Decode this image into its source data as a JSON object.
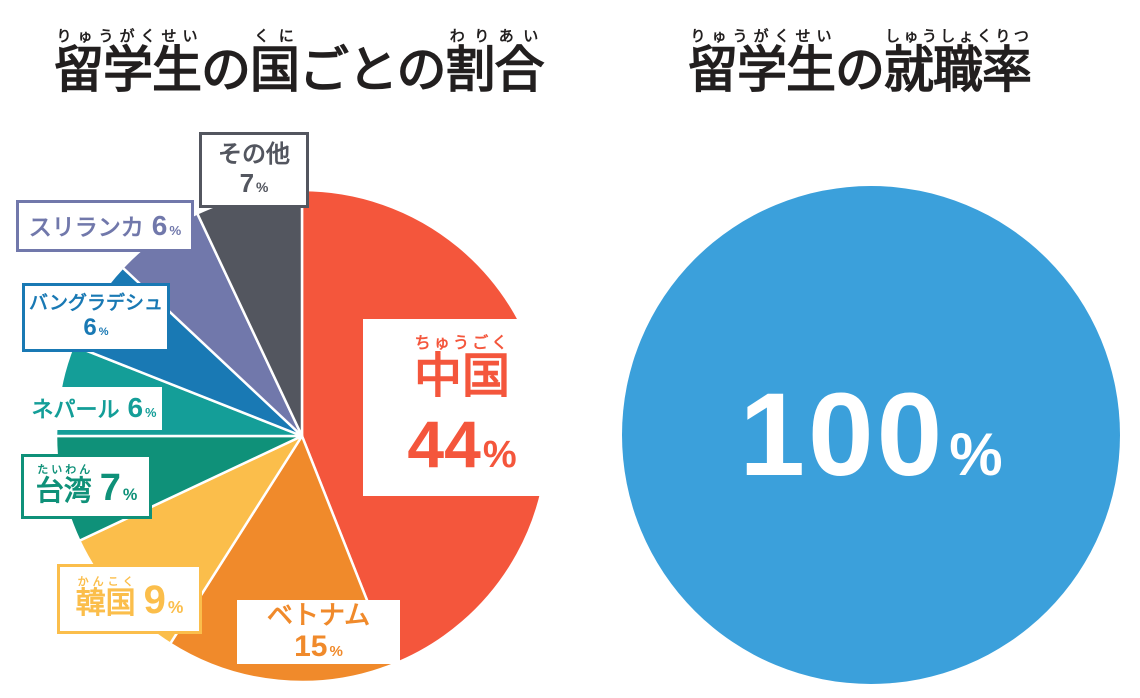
{
  "left_chart": {
    "title_segments": [
      {
        "base": "留学生",
        "ruby": "りゅうがくせい"
      },
      {
        "base": "の",
        "ruby": ""
      },
      {
        "base": "国",
        "ruby": "くに"
      },
      {
        "base": "ごとの",
        "ruby": ""
      },
      {
        "base": "割合",
        "ruby": "わりあい"
      }
    ],
    "labels": {
      "other": {
        "name": "その他",
        "value": "7",
        "pct": "%"
      },
      "srilanka": {
        "name": "スリランカ",
        "value": "6",
        "pct": "%"
      },
      "bangladesh": {
        "name": "バングラデシュ",
        "value": "6",
        "pct": "%"
      },
      "nepal": {
        "name": "ネパール",
        "value": "6",
        "pct": "%"
      },
      "taiwan": {
        "ruby": "たいわん",
        "name": "台湾",
        "value": "7",
        "pct": "%"
      },
      "korea": {
        "ruby": "かんこく",
        "name": "韓国",
        "value": "9",
        "pct": "%"
      },
      "vietnam": {
        "name": "ベトナム",
        "value": "15",
        "pct": "%"
      },
      "china": {
        "ruby": "ちゅうごく",
        "name": "中国",
        "value": "44",
        "pct": "%"
      }
    }
  },
  "right_chart": {
    "title_segments": [
      {
        "base": "留学生",
        "ruby": "りゅうがくせい"
      },
      {
        "base": "の",
        "ruby": ""
      },
      {
        "base": "就職率",
        "ruby": "しゅうしょくりつ"
      }
    ],
    "value": "100",
    "pct": "%"
  },
  "chart_data": [
    {
      "type": "pie",
      "title": "留学生の国ごとの割合",
      "start_angle": "12-oclock",
      "direction": "clockwise",
      "slices": [
        {
          "key": "china",
          "label": "中国",
          "reading": "ちゅうごく",
          "value": 44,
          "color": "#F4563C"
        },
        {
          "key": "vietnam",
          "label": "ベトナム",
          "value": 15,
          "color": "#F08A2B"
        },
        {
          "key": "korea",
          "label": "韓国",
          "reading": "かんこく",
          "value": 9,
          "color": "#FBBE4B"
        },
        {
          "key": "taiwan",
          "label": "台湾",
          "reading": "たいわん",
          "value": 7,
          "color": "#0F9179"
        },
        {
          "key": "nepal",
          "label": "ネパール",
          "value": 6,
          "color": "#149E98"
        },
        {
          "key": "bangladesh",
          "label": "バングラデシュ",
          "value": 6,
          "color": "#1979B4"
        },
        {
          "key": "srilanka",
          "label": "スリランカ",
          "value": 6,
          "color": "#7178AB"
        },
        {
          "key": "other",
          "label": "その他",
          "value": 7,
          "color": "#53565F"
        }
      ]
    },
    {
      "type": "pie",
      "title": "留学生の就職率",
      "slices": [
        {
          "key": "employment",
          "label": "100%",
          "value": 100,
          "color": "#3BA0DB"
        }
      ]
    }
  ]
}
